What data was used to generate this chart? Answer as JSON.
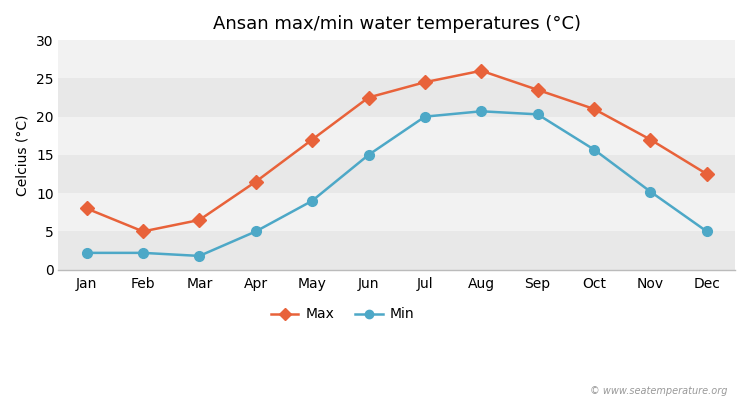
{
  "title": "Ansan max/min water temperatures (°C)",
  "ylabel": "Celcius (°C)",
  "months": [
    "Jan",
    "Feb",
    "Mar",
    "Apr",
    "May",
    "Jun",
    "Jul",
    "Aug",
    "Sep",
    "Oct",
    "Nov",
    "Dec"
  ],
  "max_values": [
    8,
    5,
    6.5,
    11.5,
    17,
    22.5,
    24.5,
    26,
    23.5,
    21,
    17,
    12.5
  ],
  "min_values": [
    2.2,
    2.2,
    1.8,
    5,
    9,
    15,
    20,
    20.7,
    20.3,
    15.7,
    10.2,
    5
  ],
  "max_color": "#e8623a",
  "min_color": "#4da8c7",
  "fig_bg_color": "#ffffff",
  "plot_bg_color": "#e8e8e8",
  "band_colors": [
    "#e8e8e8",
    "#f2f2f2"
  ],
  "ylim": [
    0,
    30
  ],
  "yticks": [
    0,
    5,
    10,
    15,
    20,
    25,
    30
  ],
  "watermark": "© www.seatemperature.org",
  "legend_max": "Max",
  "legend_min": "Min",
  "title_fontsize": 13,
  "axis_fontsize": 10,
  "linewidth": 1.8,
  "markersize": 7
}
